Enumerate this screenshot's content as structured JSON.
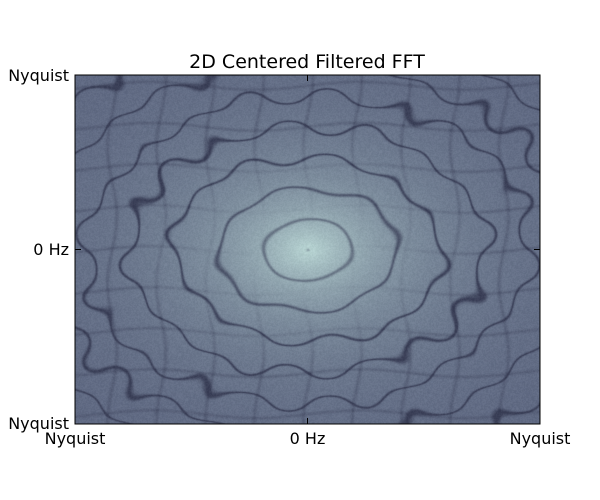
{
  "chart_data": {
    "type": "heatmap",
    "title": "2D Centered Filtered FFT",
    "xlabel": "",
    "ylabel": "",
    "x_ticks": [
      "Nyquist",
      "0 Hz",
      "Nyquist"
    ],
    "y_ticks": [
      "Nyquist",
      "0 Hz",
      "Nyquist"
    ],
    "colormap": "bone",
    "pattern": "concentric elliptical ripple rings centered at 0 Hz",
    "center_color": "#b9d6d4",
    "edge_color": "#5d6680",
    "ring_color": "#3a3f57"
  }
}
